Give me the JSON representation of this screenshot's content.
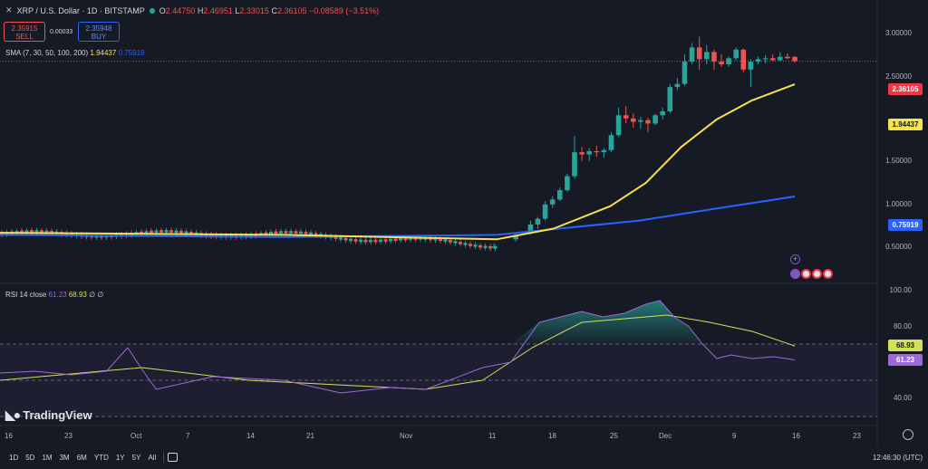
{
  "header": {
    "symbol": "XRP / U.S. Dollar · 1D · BITSTAMP",
    "o_label": "O",
    "o": "2.44750",
    "h_label": "H",
    "h": "2.46951",
    "l_label": "L",
    "l": "2.33015",
    "c_label": "C",
    "c": "2.36105",
    "change": "−0.08589 (−3.51%)"
  },
  "trade": {
    "sell_price": "2.35915",
    "sell_label": "SELL",
    "spread": "0.00033",
    "buy_price": "2.35948",
    "buy_label": "BUY"
  },
  "sma": {
    "label": "SMA (7, 30, 50, 100, 200)",
    "v1": "1.94437",
    "v2": "0.75919"
  },
  "rsi": {
    "label": "RSI 14 close",
    "v1": "61.23",
    "v2": "68.93",
    "extra": "∅ ∅"
  },
  "price_axis": [
    "3.00000",
    "2.50000",
    "1.50000",
    "1.00000",
    "0.50000"
  ],
  "price_tags": {
    "last": "2.36105",
    "sma_fast": "1.94437",
    "sma_slow": "0.75919"
  },
  "rsi_axis": [
    "100.00",
    "80.00",
    "40.00"
  ],
  "rsi_tags": {
    "ma": "68.93",
    "rsi": "61.23"
  },
  "x_axis": [
    "16",
    "23",
    "Oct",
    "7",
    "14",
    "21",
    "Nov",
    "11",
    "18",
    "25",
    "Dec",
    "9",
    "16",
    "23"
  ],
  "logo_text": "TradingView",
  "bottom": {
    "ranges": [
      "1D",
      "5D",
      "1M",
      "3M",
      "6M",
      "YTD",
      "1Y",
      "5Y",
      "All"
    ],
    "time": "12:46:30 (UTC)"
  },
  "colors": {
    "up": "#26a69a",
    "down": "#ef5350",
    "sma_fast": "#f7e24b",
    "sma_slow": "#2962ff",
    "rsi": "#9c6ad6",
    "rsi_ma": "#d4e157"
  },
  "icons": [
    "close-icon",
    "live-dot-icon",
    "plus-icon",
    "flag-icon",
    "calendar-range-icon",
    "settings-icon"
  ],
  "chart_data": {
    "type": "candlestick",
    "interval": "1D",
    "y_scale": "log",
    "ylim": [
      0.4,
      3.1
    ],
    "x_range": [
      "Sep 16",
      "Dec 23"
    ],
    "candles": [
      {
        "date": "Nov 5",
        "o": 0.5,
        "h": 0.51,
        "l": 0.49,
        "c": 0.5
      },
      {
        "date": "Nov 8",
        "o": 0.53,
        "h": 0.56,
        "l": 0.52,
        "c": 0.55
      },
      {
        "date": "Nov 10",
        "o": 0.56,
        "h": 0.62,
        "l": 0.55,
        "c": 0.6
      },
      {
        "date": "Nov 11",
        "o": 0.6,
        "h": 0.64,
        "l": 0.58,
        "c": 0.63
      },
      {
        "date": "Nov 12",
        "o": 0.63,
        "h": 0.73,
        "l": 0.62,
        "c": 0.71
      },
      {
        "date": "Nov 13",
        "o": 0.71,
        "h": 0.76,
        "l": 0.69,
        "c": 0.74
      },
      {
        "date": "Nov 14",
        "o": 0.74,
        "h": 0.82,
        "l": 0.73,
        "c": 0.8
      },
      {
        "date": "Nov 15",
        "o": 0.8,
        "h": 0.92,
        "l": 0.79,
        "c": 0.9
      },
      {
        "date": "Nov 16",
        "o": 0.9,
        "h": 1.26,
        "l": 0.88,
        "c": 1.1
      },
      {
        "date": "Nov 17",
        "o": 1.1,
        "h": 1.15,
        "l": 1.02,
        "c": 1.08
      },
      {
        "date": "Nov 18",
        "o": 1.08,
        "h": 1.14,
        "l": 1.02,
        "c": 1.11
      },
      {
        "date": "Nov 19",
        "o": 1.11,
        "h": 1.16,
        "l": 1.06,
        "c": 1.1
      },
      {
        "date": "Nov 20",
        "o": 1.1,
        "h": 1.14,
        "l": 1.05,
        "c": 1.12
      },
      {
        "date": "Nov 21",
        "o": 1.12,
        "h": 1.3,
        "l": 1.1,
        "c": 1.27
      },
      {
        "date": "Nov 22",
        "o": 1.27,
        "h": 1.6,
        "l": 1.25,
        "c": 1.5
      },
      {
        "date": "Nov 23",
        "o": 1.5,
        "h": 1.62,
        "l": 1.4,
        "c": 1.46
      },
      {
        "date": "Nov 24",
        "o": 1.46,
        "h": 1.52,
        "l": 1.35,
        "c": 1.42
      },
      {
        "date": "Nov 25",
        "o": 1.42,
        "h": 1.48,
        "l": 1.34,
        "c": 1.44
      },
      {
        "date": "Nov 26",
        "o": 1.44,
        "h": 1.47,
        "l": 1.3,
        "c": 1.4
      },
      {
        "date": "Nov 27",
        "o": 1.4,
        "h": 1.52,
        "l": 1.38,
        "c": 1.5
      },
      {
        "date": "Nov 28",
        "o": 1.5,
        "h": 1.6,
        "l": 1.45,
        "c": 1.55
      },
      {
        "date": "Nov 29",
        "o": 1.55,
        "h": 1.95,
        "l": 1.53,
        "c": 1.9
      },
      {
        "date": "Nov 30",
        "o": 1.9,
        "h": 2.05,
        "l": 1.85,
        "c": 1.95
      },
      {
        "date": "Dec 1",
        "o": 1.95,
        "h": 2.5,
        "l": 1.92,
        "c": 2.35
      },
      {
        "date": "Dec 2",
        "o": 2.35,
        "h": 2.75,
        "l": 2.3,
        "c": 2.65
      },
      {
        "date": "Dec 3",
        "o": 2.65,
        "h": 2.9,
        "l": 2.2,
        "c": 2.4
      },
      {
        "date": "Dec 4",
        "o": 2.4,
        "h": 2.7,
        "l": 2.3,
        "c": 2.55
      },
      {
        "date": "Dec 5",
        "o": 2.55,
        "h": 2.6,
        "l": 2.2,
        "c": 2.35
      },
      {
        "date": "Dec 6",
        "o": 2.35,
        "h": 2.5,
        "l": 2.25,
        "c": 2.3
      },
      {
        "date": "Dec 7",
        "o": 2.3,
        "h": 2.45,
        "l": 2.25,
        "c": 2.42
      },
      {
        "date": "Dec 8",
        "o": 2.42,
        "h": 2.65,
        "l": 2.38,
        "c": 2.6
      },
      {
        "date": "Dec 9",
        "o": 2.6,
        "h": 2.63,
        "l": 2.15,
        "c": 2.2
      },
      {
        "date": "Dec 10",
        "o": 2.2,
        "h": 2.4,
        "l": 1.9,
        "c": 2.35
      },
      {
        "date": "Dec 11",
        "o": 2.35,
        "h": 2.45,
        "l": 2.3,
        "c": 2.4
      },
      {
        "date": "Dec 12",
        "o": 2.4,
        "h": 2.48,
        "l": 2.32,
        "c": 2.42
      },
      {
        "date": "Dec 13",
        "o": 2.42,
        "h": 2.5,
        "l": 2.35,
        "c": 2.38
      },
      {
        "date": "Dec 14",
        "o": 2.38,
        "h": 2.55,
        "l": 2.36,
        "c": 2.45
      },
      {
        "date": "Dec 15",
        "o": 2.45,
        "h": 2.52,
        "l": 2.4,
        "c": 2.42
      },
      {
        "date": "Dec 16",
        "o": 2.4475,
        "h": 2.46951,
        "l": 2.33015,
        "c": 2.36105
      }
    ],
    "sma_fast": [
      [
        0,
        0.56
      ],
      [
        40,
        0.55
      ],
      [
        70,
        0.53
      ],
      [
        78,
        0.58
      ],
      [
        86,
        0.7
      ],
      [
        91,
        0.85
      ],
      [
        96,
        1.15
      ],
      [
        101,
        1.45
      ],
      [
        106,
        1.7
      ],
      [
        112,
        1.94437
      ]
    ],
    "sma_slow": [
      [
        0,
        0.55
      ],
      [
        40,
        0.54
      ],
      [
        70,
        0.55
      ],
      [
        90,
        0.62
      ],
      [
        100,
        0.68
      ],
      [
        112,
        0.75919
      ]
    ],
    "rsi": [
      [
        0,
        54
      ],
      [
        5,
        55
      ],
      [
        10,
        53
      ],
      [
        15,
        55
      ],
      [
        18,
        68
      ],
      [
        20,
        56
      ],
      [
        22,
        45
      ],
      [
        30,
        52
      ],
      [
        40,
        50
      ],
      [
        48,
        43
      ],
      [
        55,
        46
      ],
      [
        60,
        45
      ],
      [
        68,
        57
      ],
      [
        72,
        60
      ],
      [
        76,
        82
      ],
      [
        80,
        86
      ],
      [
        82,
        88
      ],
      [
        85,
        85
      ],
      [
        88,
        87
      ],
      [
        91,
        92
      ],
      [
        93,
        94
      ],
      [
        95,
        85
      ],
      [
        97,
        80
      ],
      [
        99,
        70
      ],
      [
        101,
        62
      ],
      [
        103,
        64
      ],
      [
        106,
        62
      ],
      [
        109,
        63
      ],
      [
        112,
        61.23
      ]
    ],
    "rsi_ma": [
      [
        0,
        50
      ],
      [
        20,
        57
      ],
      [
        35,
        50
      ],
      [
        50,
        47
      ],
      [
        60,
        45
      ],
      [
        68,
        50
      ],
      [
        75,
        68
      ],
      [
        82,
        82
      ],
      [
        88,
        84
      ],
      [
        94,
        86
      ],
      [
        100,
        82
      ],
      [
        106,
        77
      ],
      [
        112,
        68.93
      ]
    ],
    "rsi_levels": [
      70,
      50,
      30
    ]
  }
}
